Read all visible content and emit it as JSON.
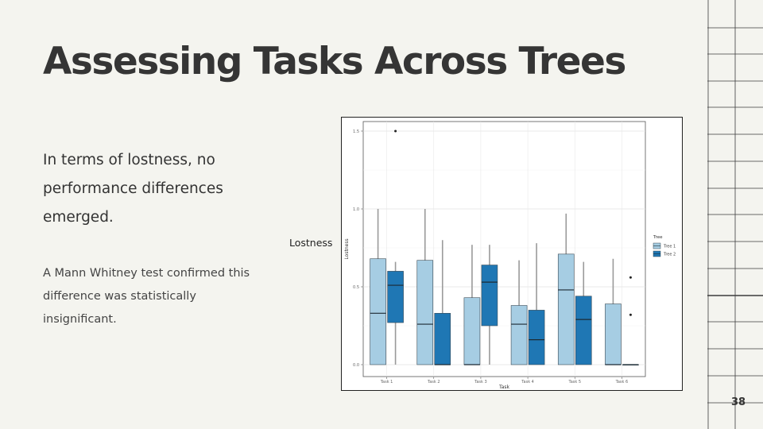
{
  "slide": {
    "title": "Assessing Tasks Across Trees",
    "lead": "In terms of lostness, no performance differences emerged.",
    "note": "A Mann Whitney test confirmed this difference was statistically insignificant.",
    "side_label": "Lostness",
    "page_number": "38"
  },
  "colors": {
    "tree1": "#a6cde3",
    "tree2": "#1f77b4",
    "background": "#f4f4ef"
  },
  "chart_data": {
    "type": "boxplot",
    "xlabel": "Task",
    "ylabel": "Lostness",
    "ylim": [
      0,
      1.5
    ],
    "yticks": [
      "0.0",
      "0.5",
      "1.0",
      "1.5"
    ],
    "categories": [
      "Task 1",
      "Task 2",
      "Task 3",
      "Task 4",
      "Task 5",
      "Task 6"
    ],
    "legend": {
      "title": "Tree",
      "position": "right",
      "entries": [
        "Tree 1",
        "Tree 2"
      ]
    },
    "grid": true,
    "series": [
      {
        "name": "Tree 1",
        "boxes": [
          {
            "min": 0,
            "q1": 0,
            "median": 0.33,
            "q3": 0.68,
            "max": 1.0,
            "outliers": []
          },
          {
            "min": 0,
            "q1": 0,
            "median": 0.26,
            "q3": 0.67,
            "max": 1.0,
            "outliers": []
          },
          {
            "min": 0,
            "q1": 0,
            "median": 0,
            "q3": 0.43,
            "max": 0.77,
            "outliers": []
          },
          {
            "min": 0,
            "q1": 0,
            "median": 0.26,
            "q3": 0.38,
            "max": 0.67,
            "outliers": []
          },
          {
            "min": 0,
            "q1": 0,
            "median": 0.48,
            "q3": 0.71,
            "max": 0.97,
            "outliers": []
          },
          {
            "min": 0,
            "q1": 0,
            "median": 0,
            "q3": 0.39,
            "max": 0.68,
            "outliers": []
          }
        ]
      },
      {
        "name": "Tree 2",
        "boxes": [
          {
            "min": 0,
            "q1": 0.27,
            "median": 0.51,
            "q3": 0.6,
            "max": 0.66,
            "outliers": [
              1.5
            ]
          },
          {
            "min": 0,
            "q1": 0,
            "median": 0,
            "q3": 0.33,
            "max": 0.8,
            "outliers": []
          },
          {
            "min": 0,
            "q1": 0.25,
            "median": 0.53,
            "q3": 0.64,
            "max": 0.77,
            "outliers": []
          },
          {
            "min": 0,
            "q1": 0,
            "median": 0.16,
            "q3": 0.35,
            "max": 0.78,
            "outliers": []
          },
          {
            "min": 0,
            "q1": 0,
            "median": 0.29,
            "q3": 0.44,
            "max": 0.66,
            "outliers": []
          },
          {
            "min": 0,
            "q1": 0,
            "median": 0,
            "q3": 0,
            "max": 0,
            "outliers": [
              0.32,
              0.56
            ]
          }
        ]
      }
    ]
  }
}
